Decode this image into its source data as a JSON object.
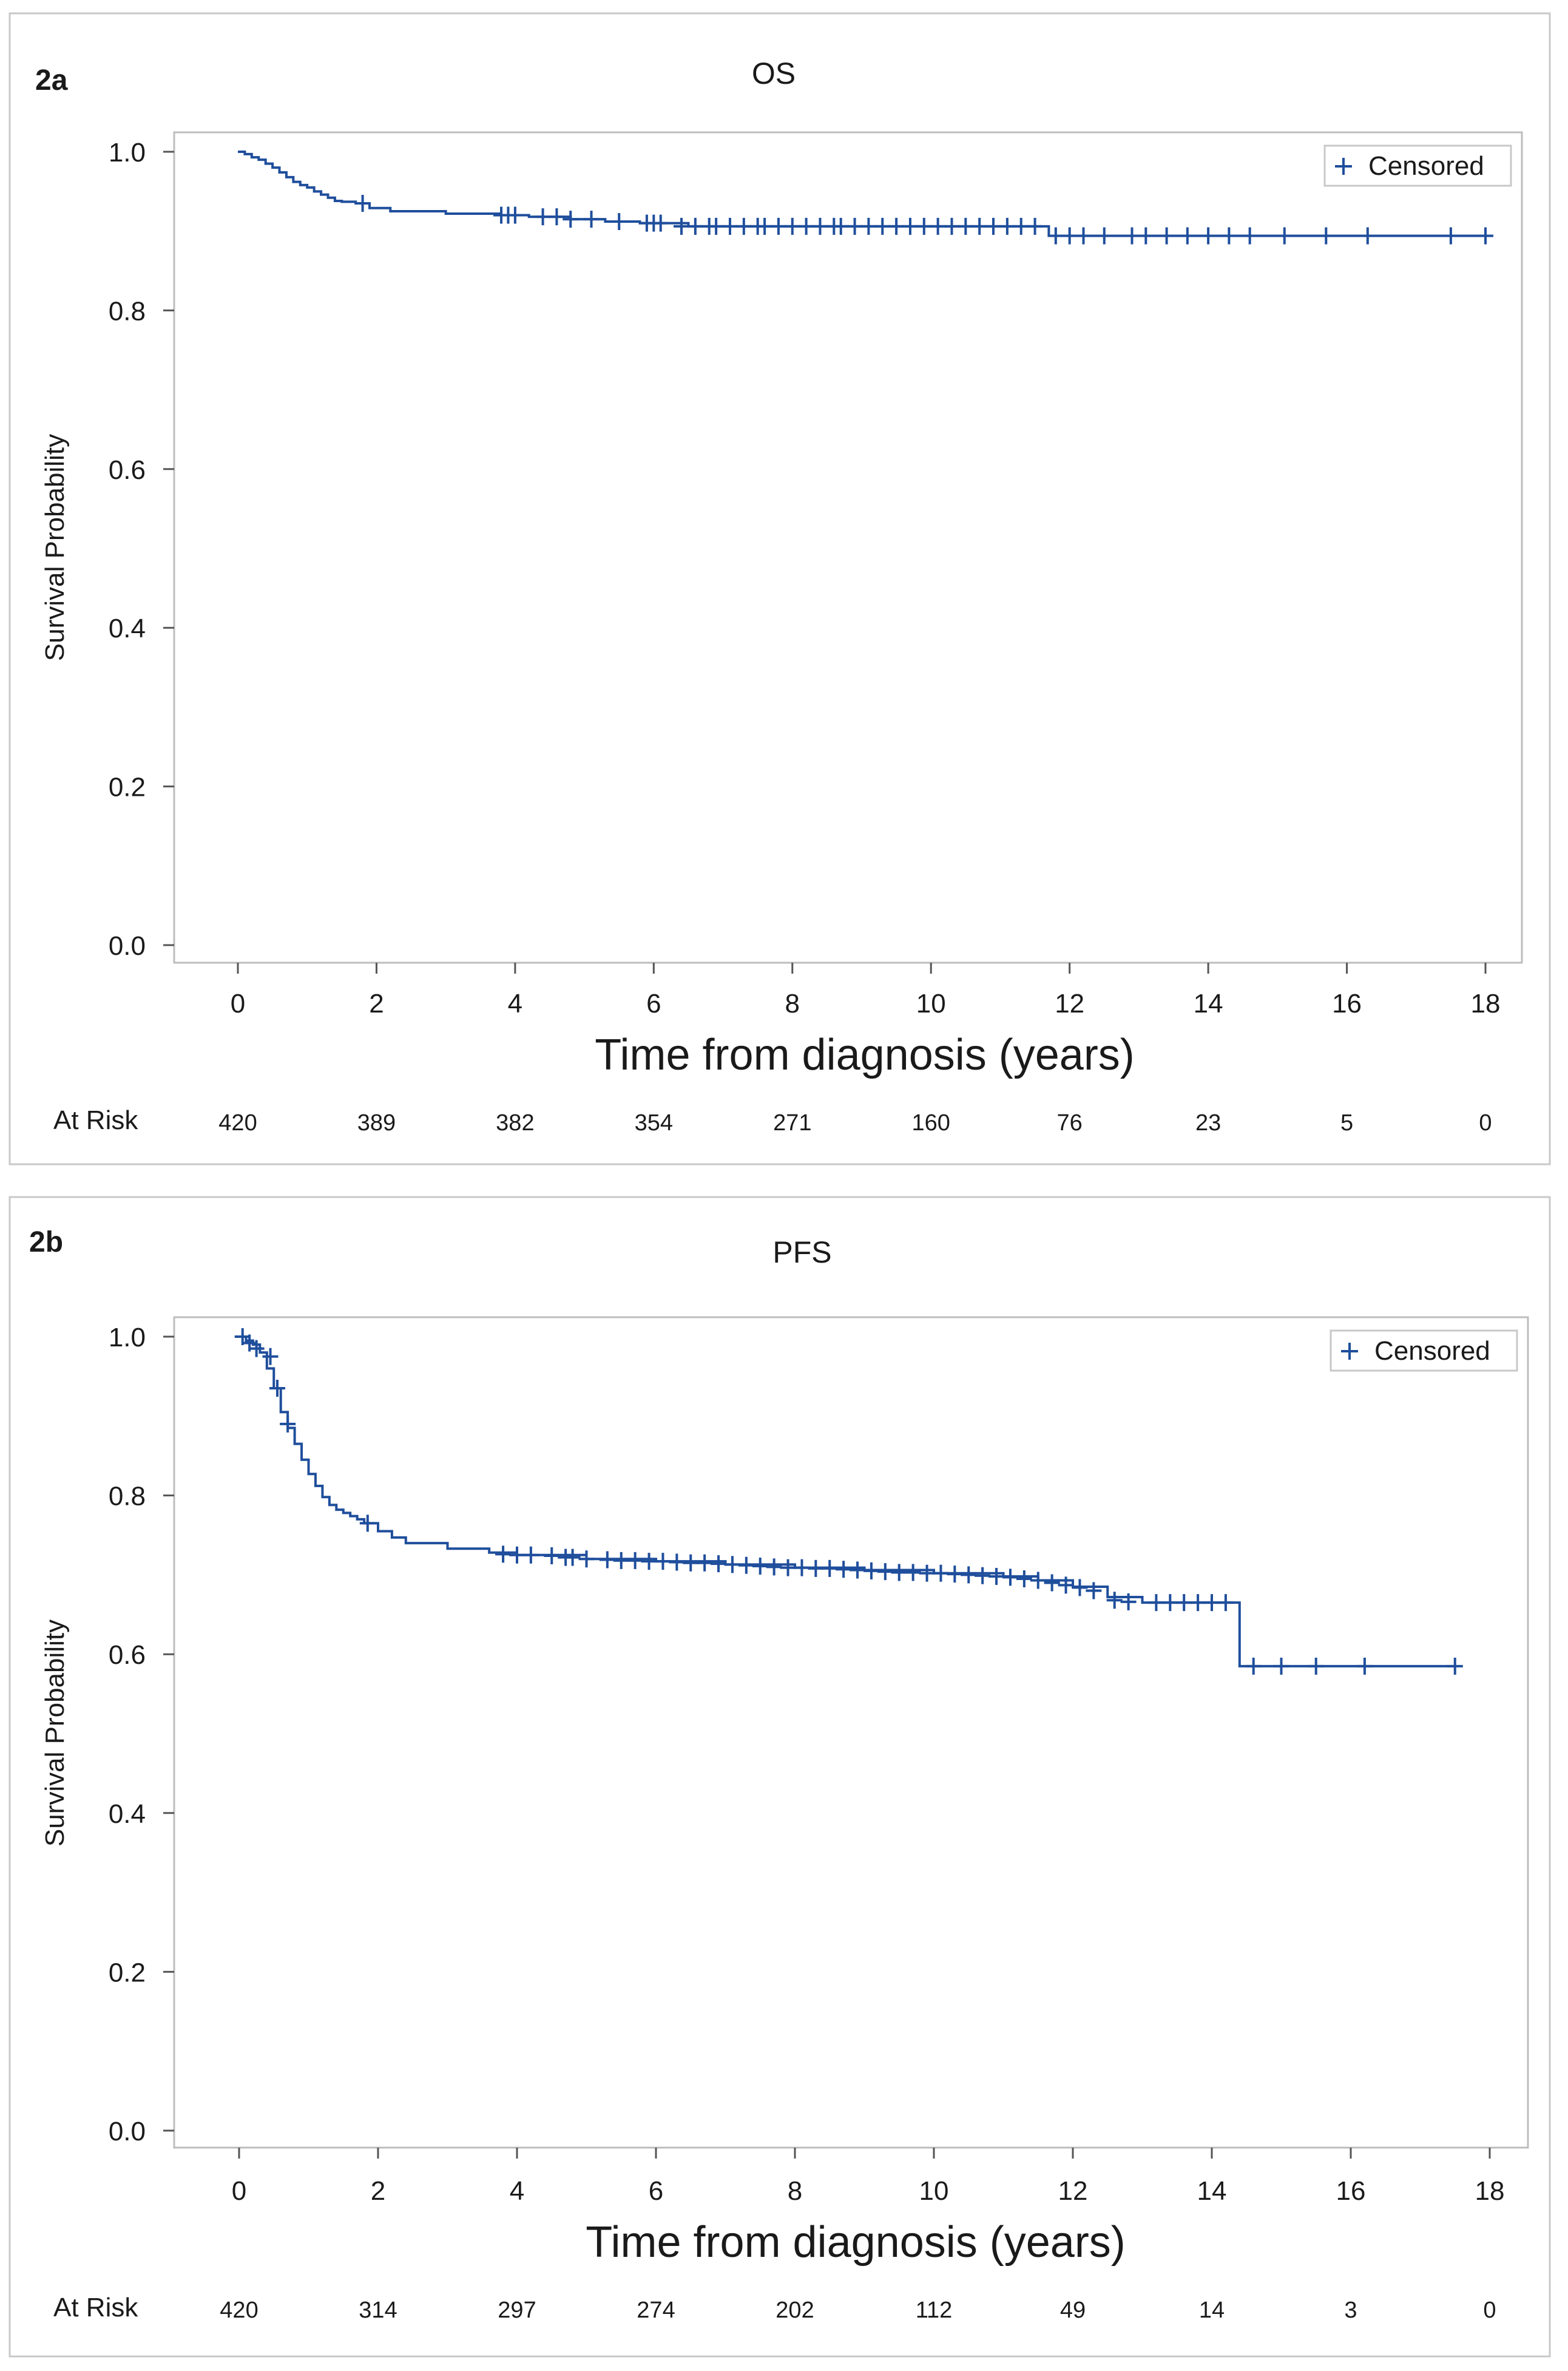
{
  "chart_data": [
    {
      "panel_label": "2a",
      "type": "line",
      "title": "OS",
      "xlabel": "Time from diagnosis (years)",
      "ylabel": "Survival Probability",
      "xlim": [
        0,
        18
      ],
      "ylim": [
        0,
        1
      ],
      "x_ticks": [
        0,
        2,
        4,
        6,
        8,
        10,
        12,
        14,
        16,
        18
      ],
      "y_ticks": [
        "0.0",
        "0.2",
        "0.4",
        "0.6",
        "0.8",
        "1.0"
      ],
      "legend": {
        "label": "Censored",
        "position": "top-right"
      },
      "grid": false,
      "color": "#1f4e9c",
      "at_risk_label": "At Risk",
      "at_risk": {
        "x": [
          0,
          2,
          4,
          6,
          8,
          10,
          12,
          14,
          16,
          18
        ],
        "values": [
          420,
          389,
          382,
          354,
          271,
          160,
          76,
          23,
          5,
          0
        ]
      },
      "series": [
        {
          "x": [
            0,
            0.1,
            0.2,
            0.3,
            0.4,
            0.5,
            0.6,
            0.7,
            0.8,
            0.9,
            1.0,
            1.1,
            1.2,
            1.3,
            1.4,
            1.5,
            1.7,
            1.9,
            2.2,
            3.0,
            3.8,
            4.2,
            4.8,
            5.3,
            5.8,
            6.5,
            11.6,
            11.7,
            18
          ],
          "y": [
            1.0,
            0.997,
            0.993,
            0.99,
            0.985,
            0.98,
            0.974,
            0.968,
            0.962,
            0.958,
            0.955,
            0.95,
            0.946,
            0.942,
            0.938,
            0.937,
            0.935,
            0.929,
            0.925,
            0.922,
            0.92,
            0.918,
            0.915,
            0.912,
            0.91,
            0.906,
            0.906,
            0.894,
            0.894
          ]
        }
      ],
      "censored": [
        {
          "x": 1.8,
          "y": 0.935
        },
        {
          "x": 3.8,
          "y": 0.92
        },
        {
          "x": 3.9,
          "y": 0.92
        },
        {
          "x": 4.0,
          "y": 0.92
        },
        {
          "x": 4.4,
          "y": 0.918
        },
        {
          "x": 4.6,
          "y": 0.918
        },
        {
          "x": 4.8,
          "y": 0.915
        },
        {
          "x": 5.1,
          "y": 0.915
        },
        {
          "x": 5.5,
          "y": 0.912
        },
        {
          "x": 5.9,
          "y": 0.91
        },
        {
          "x": 6.0,
          "y": 0.91
        },
        {
          "x": 6.1,
          "y": 0.91
        },
        {
          "x": 6.4,
          "y": 0.906
        },
        {
          "x": 6.6,
          "y": 0.906
        },
        {
          "x": 6.8,
          "y": 0.906
        },
        {
          "x": 6.9,
          "y": 0.906
        },
        {
          "x": 7.1,
          "y": 0.906
        },
        {
          "x": 7.3,
          "y": 0.906
        },
        {
          "x": 7.5,
          "y": 0.906
        },
        {
          "x": 7.6,
          "y": 0.906
        },
        {
          "x": 7.8,
          "y": 0.906
        },
        {
          "x": 8.0,
          "y": 0.906
        },
        {
          "x": 8.2,
          "y": 0.906
        },
        {
          "x": 8.4,
          "y": 0.906
        },
        {
          "x": 8.6,
          "y": 0.906
        },
        {
          "x": 8.7,
          "y": 0.906
        },
        {
          "x": 8.9,
          "y": 0.906
        },
        {
          "x": 9.1,
          "y": 0.906
        },
        {
          "x": 9.3,
          "y": 0.906
        },
        {
          "x": 9.5,
          "y": 0.906
        },
        {
          "x": 9.7,
          "y": 0.906
        },
        {
          "x": 9.9,
          "y": 0.906
        },
        {
          "x": 10.1,
          "y": 0.906
        },
        {
          "x": 10.3,
          "y": 0.906
        },
        {
          "x": 10.5,
          "y": 0.906
        },
        {
          "x": 10.7,
          "y": 0.906
        },
        {
          "x": 10.9,
          "y": 0.906
        },
        {
          "x": 11.1,
          "y": 0.906
        },
        {
          "x": 11.3,
          "y": 0.906
        },
        {
          "x": 11.5,
          "y": 0.906
        },
        {
          "x": 11.8,
          "y": 0.894
        },
        {
          "x": 12.0,
          "y": 0.894
        },
        {
          "x": 12.2,
          "y": 0.894
        },
        {
          "x": 12.5,
          "y": 0.894
        },
        {
          "x": 12.9,
          "y": 0.894
        },
        {
          "x": 13.1,
          "y": 0.894
        },
        {
          "x": 13.4,
          "y": 0.894
        },
        {
          "x": 13.7,
          "y": 0.894
        },
        {
          "x": 14.0,
          "y": 0.894
        },
        {
          "x": 14.3,
          "y": 0.894
        },
        {
          "x": 14.6,
          "y": 0.894
        },
        {
          "x": 15.1,
          "y": 0.894
        },
        {
          "x": 15.7,
          "y": 0.894
        },
        {
          "x": 16.3,
          "y": 0.894
        },
        {
          "x": 17.5,
          "y": 0.894
        },
        {
          "x": 18.0,
          "y": 0.894
        }
      ]
    },
    {
      "panel_label": "2b",
      "type": "line",
      "title": "PFS",
      "xlabel": "Time from diagnosis (years)",
      "ylabel": "Survival Probability",
      "xlim": [
        0,
        18
      ],
      "ylim": [
        0,
        1
      ],
      "x_ticks": [
        0,
        2,
        4,
        6,
        8,
        10,
        12,
        14,
        16,
        18
      ],
      "y_ticks": [
        "0.0",
        "0.2",
        "0.4",
        "0.6",
        "0.8",
        "1.0"
      ],
      "legend": {
        "label": "Censored",
        "position": "top-right"
      },
      "grid": false,
      "color": "#1f4e9c",
      "at_risk_label": "At Risk",
      "at_risk": {
        "x": [
          0,
          2,
          4,
          6,
          8,
          10,
          12,
          14,
          16,
          18
        ],
        "values": [
          420,
          314,
          297,
          274,
          202,
          112,
          49,
          14,
          3,
          0
        ]
      },
      "series": [
        {
          "x": [
            0,
            0.1,
            0.2,
            0.3,
            0.4,
            0.5,
            0.6,
            0.7,
            0.8,
            0.9,
            1.0,
            1.1,
            1.2,
            1.3,
            1.4,
            1.5,
            1.6,
            1.7,
            1.8,
            2.0,
            2.2,
            2.4,
            3.0,
            3.6,
            4.0,
            5.0,
            6.0,
            7.0,
            8.0,
            9.0,
            10.0,
            11.0,
            11.5,
            12.0,
            12.5,
            13.0,
            14.3,
            14.4,
            17.5
          ],
          "y": [
            1.0,
            0.995,
            0.99,
            0.98,
            0.96,
            0.935,
            0.905,
            0.885,
            0.865,
            0.845,
            0.827,
            0.812,
            0.798,
            0.788,
            0.782,
            0.778,
            0.774,
            0.77,
            0.765,
            0.755,
            0.747,
            0.74,
            0.733,
            0.728,
            0.725,
            0.72,
            0.717,
            0.713,
            0.709,
            0.706,
            0.702,
            0.698,
            0.693,
            0.685,
            0.672,
            0.665,
            0.665,
            0.585,
            0.585
          ]
        }
      ],
      "censored": [
        {
          "x": 0.05,
          "y": 1.0
        },
        {
          "x": 0.15,
          "y": 0.992
        },
        {
          "x": 0.25,
          "y": 0.985
        },
        {
          "x": 0.45,
          "y": 0.975
        },
        {
          "x": 0.55,
          "y": 0.935
        },
        {
          "x": 0.7,
          "y": 0.89
        },
        {
          "x": 1.85,
          "y": 0.765
        },
        {
          "x": 3.8,
          "y": 0.726
        },
        {
          "x": 4.0,
          "y": 0.725
        },
        {
          "x": 4.2,
          "y": 0.725
        },
        {
          "x": 4.5,
          "y": 0.724
        },
        {
          "x": 4.7,
          "y": 0.722
        },
        {
          "x": 4.8,
          "y": 0.722
        },
        {
          "x": 5.0,
          "y": 0.72
        },
        {
          "x": 5.3,
          "y": 0.719
        },
        {
          "x": 5.5,
          "y": 0.718
        },
        {
          "x": 5.7,
          "y": 0.718
        },
        {
          "x": 5.9,
          "y": 0.717
        },
        {
          "x": 6.1,
          "y": 0.717
        },
        {
          "x": 6.3,
          "y": 0.716
        },
        {
          "x": 6.5,
          "y": 0.715
        },
        {
          "x": 6.7,
          "y": 0.715
        },
        {
          "x": 6.9,
          "y": 0.714
        },
        {
          "x": 7.1,
          "y": 0.713
        },
        {
          "x": 7.3,
          "y": 0.712
        },
        {
          "x": 7.5,
          "y": 0.711
        },
        {
          "x": 7.7,
          "y": 0.71
        },
        {
          "x": 7.9,
          "y": 0.709
        },
        {
          "x": 8.1,
          "y": 0.709
        },
        {
          "x": 8.3,
          "y": 0.708
        },
        {
          "x": 8.5,
          "y": 0.708
        },
        {
          "x": 8.7,
          "y": 0.707
        },
        {
          "x": 8.9,
          "y": 0.706
        },
        {
          "x": 9.1,
          "y": 0.705
        },
        {
          "x": 9.3,
          "y": 0.704
        },
        {
          "x": 9.5,
          "y": 0.703
        },
        {
          "x": 9.7,
          "y": 0.703
        },
        {
          "x": 9.9,
          "y": 0.702
        },
        {
          "x": 10.1,
          "y": 0.702
        },
        {
          "x": 10.3,
          "y": 0.701
        },
        {
          "x": 10.5,
          "y": 0.7
        },
        {
          "x": 10.7,
          "y": 0.699
        },
        {
          "x": 10.9,
          "y": 0.698
        },
        {
          "x": 11.1,
          "y": 0.697
        },
        {
          "x": 11.3,
          "y": 0.695
        },
        {
          "x": 11.5,
          "y": 0.693
        },
        {
          "x": 11.7,
          "y": 0.69
        },
        {
          "x": 11.9,
          "y": 0.687
        },
        {
          "x": 12.1,
          "y": 0.684
        },
        {
          "x": 12.3,
          "y": 0.68
        },
        {
          "x": 12.6,
          "y": 0.668
        },
        {
          "x": 12.8,
          "y": 0.666
        },
        {
          "x": 13.2,
          "y": 0.665
        },
        {
          "x": 13.4,
          "y": 0.665
        },
        {
          "x": 13.6,
          "y": 0.665
        },
        {
          "x": 13.8,
          "y": 0.665
        },
        {
          "x": 14.0,
          "y": 0.665
        },
        {
          "x": 14.2,
          "y": 0.665
        },
        {
          "x": 14.6,
          "y": 0.585
        },
        {
          "x": 15.0,
          "y": 0.585
        },
        {
          "x": 15.5,
          "y": 0.585
        },
        {
          "x": 16.2,
          "y": 0.585
        },
        {
          "x": 17.5,
          "y": 0.585
        }
      ]
    }
  ]
}
